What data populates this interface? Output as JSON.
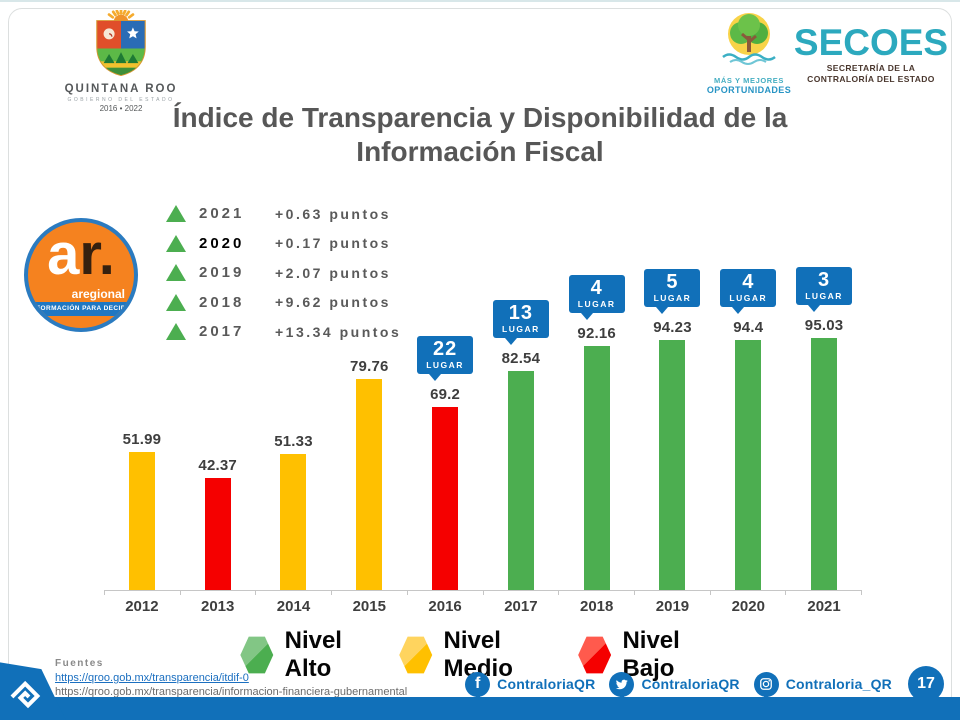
{
  "slide": {
    "title_line1": "Índice de Transparencia y Disponibilidad de la",
    "title_line2": "Información Fiscal",
    "page_number": "17"
  },
  "logos": {
    "quintana_roo": {
      "name": "QUINTANA ROO",
      "subtitle": "GOBIERNO DEL ESTADO",
      "years": "2016 • 2022"
    },
    "oportunidades": {
      "line1": "MÁS Y MEJORES",
      "line2": "OPORTUNIDADES"
    },
    "secoes": {
      "title": "SECOES",
      "subtitle_line1": "SECRETARÍA DE LA",
      "subtitle_line2": "CONTRALORÍA DEL ESTADO"
    },
    "aregional": {
      "mark_a": "a",
      "mark_r": "r.",
      "name": "aregional",
      "tagline": "INFORMACIÓN PARA DECIDIR"
    }
  },
  "gains": [
    {
      "year": "2021",
      "delta": "+0.63 puntos",
      "emphasis": false
    },
    {
      "year": "2020",
      "delta": "+0.17 puntos",
      "emphasis": true
    },
    {
      "year": "2019",
      "delta": "+2.07 puntos",
      "emphasis": false
    },
    {
      "year": "2018",
      "delta": "+9.62 puntos",
      "emphasis": false
    },
    {
      "year": "2017",
      "delta": "+13.34 puntos",
      "emphasis": false
    }
  ],
  "chart_data": {
    "type": "bar",
    "title": "",
    "xlabel": "",
    "ylabel": "",
    "ylim": [
      0,
      100
    ],
    "grid": false,
    "value_labels_shown": true,
    "categories": [
      "2012",
      "2013",
      "2014",
      "2015",
      "2016",
      "2017",
      "2018",
      "2019",
      "2020",
      "2021"
    ],
    "values": [
      51.99,
      42.37,
      51.33,
      79.76,
      69.2,
      82.54,
      92.16,
      94.23,
      94.4,
      95.03
    ],
    "value_labels": [
      "51.99",
      "42.37",
      "51.33",
      "79.76",
      "69.2",
      "82.54",
      "92.16",
      "94.23",
      "94.4",
      "95.03"
    ],
    "levels": [
      "medio",
      "bajo",
      "medio",
      "medio",
      "bajo",
      "alto",
      "alto",
      "alto",
      "alto",
      "alto"
    ],
    "rankings": [
      null,
      null,
      null,
      null,
      "22",
      "13",
      "4",
      "5",
      "4",
      "3"
    ],
    "ranking_unit": "LUGAR",
    "level_colors": {
      "alto": "#4cae50",
      "medio": "#ffc000",
      "bajo": "#f50000"
    },
    "ranking_badge_color": "#1170b9"
  },
  "level_legend": [
    {
      "label": "Nivel Alto",
      "color": "#4cae50",
      "color_light": "#82c685"
    },
    {
      "label": "Nivel Medio",
      "color": "#ffc000",
      "color_light": "#ffd45e"
    },
    {
      "label": "Nivel Bajo",
      "color": "#f50000",
      "color_light": "#ff5a4d"
    }
  ],
  "sources": {
    "heading": "Fuentes",
    "links": [
      {
        "text": "https://qroo.gob.mx/transparencia/itdif-0",
        "underlined": true
      },
      {
        "text": "https://qroo.gob.mx/transparencia/informacion-financiera-gubernamental",
        "underlined": false
      }
    ]
  },
  "social": [
    {
      "network": "facebook",
      "icon": "facebook-icon",
      "handle": "ContraloriaQR"
    },
    {
      "network": "twitter",
      "icon": "twitter-icon",
      "handle": "ContraloriaQR"
    },
    {
      "network": "instagram",
      "icon": "instagram-icon",
      "handle": "Contraloria_QR"
    }
  ],
  "colors": {
    "accent_blue": "#1170b9",
    "brand_teal": "#2ca9be",
    "title_gray": "#575757"
  }
}
